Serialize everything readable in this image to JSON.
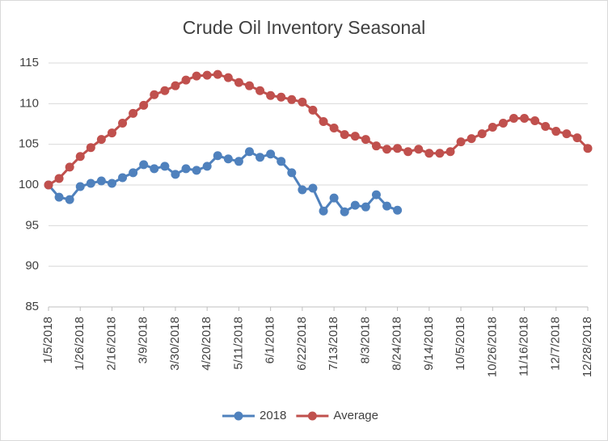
{
  "chart_data": {
    "type": "line",
    "title": "Crude Oil Inventory Seasonal",
    "categories": [
      "1/5/2018",
      null,
      null,
      "1/26/2018",
      null,
      null,
      "2/16/2018",
      null,
      null,
      "3/9/2018",
      null,
      null,
      "3/30/2018",
      null,
      null,
      "4/20/2018",
      null,
      null,
      "5/11/2018",
      null,
      null,
      "6/1/2018",
      null,
      null,
      "6/22/2018",
      null,
      null,
      "7/13/2018",
      null,
      null,
      "8/3/2018",
      null,
      null,
      "8/24/2018",
      null,
      null,
      "9/14/2018",
      null,
      null,
      "10/5/2018",
      null,
      null,
      "10/26/2018",
      null,
      null,
      "11/16/2018",
      null,
      null,
      "12/7/2018",
      null,
      null,
      "12/28/2018"
    ],
    "series": [
      {
        "name": "2018",
        "color": "#4f81bd",
        "values": [
          100,
          98.5,
          98.2,
          99.8,
          100.2,
          100.5,
          100.2,
          100.9,
          101.5,
          102.5,
          102.0,
          102.3,
          101.3,
          102.0,
          101.8,
          102.3,
          103.6,
          103.2,
          102.9,
          104.1,
          103.4,
          103.8,
          102.9,
          101.5,
          99.4,
          99.6,
          96.8,
          98.4,
          96.7,
          97.5,
          97.3,
          98.8,
          97.4,
          96.9,
          null,
          null,
          null,
          null,
          null,
          null,
          null,
          null,
          null,
          null,
          null,
          null,
          null,
          null,
          null,
          null,
          null,
          null
        ]
      },
      {
        "name": "Average",
        "color": "#c0504d",
        "values": [
          100,
          100.8,
          102.2,
          103.5,
          104.6,
          105.6,
          106.4,
          107.6,
          108.8,
          109.8,
          111.1,
          111.6,
          112.2,
          112.9,
          113.4,
          113.5,
          113.6,
          113.2,
          112.6,
          112.2,
          111.6,
          111.0,
          110.8,
          110.5,
          110.2,
          109.2,
          107.8,
          107.0,
          106.2,
          106.0,
          105.6,
          104.8,
          104.4,
          104.5,
          104.1,
          104.4,
          103.9,
          103.9,
          104.1,
          105.3,
          105.7,
          106.3,
          107.1,
          107.6,
          108.2,
          108.2,
          107.9,
          107.2,
          106.6,
          106.3,
          105.8,
          104.5
        ]
      }
    ],
    "ylim": [
      85,
      115
    ],
    "yticks": [
      85,
      90,
      95,
      100,
      105,
      110,
      115
    ],
    "grid": true,
    "legend": "bottom"
  }
}
